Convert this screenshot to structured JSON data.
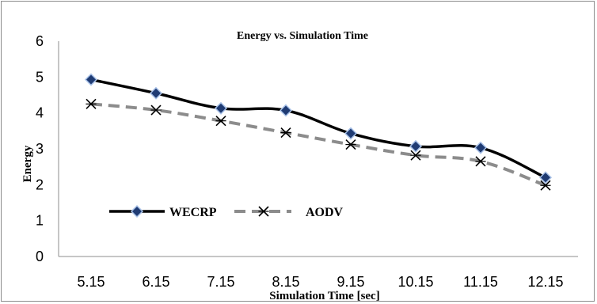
{
  "chart_data": {
    "type": "line",
    "title": "Energy vs. Simulation Time",
    "xlabel": "Simulation Time [sec]",
    "ylabel": "Energy",
    "categories": [
      "5.15",
      "6.15",
      "7.15",
      "8.15",
      "9.15",
      "10.15",
      "11.15",
      "12.15"
    ],
    "ylim": [
      0,
      6
    ],
    "yticks": [
      0,
      1,
      2,
      3,
      4,
      5,
      6
    ],
    "grid": false,
    "legend_position": "lower-left",
    "series": [
      {
        "name": "WECRP",
        "values": [
          4.93,
          4.55,
          4.13,
          4.07,
          3.43,
          3.07,
          3.03,
          2.2
        ],
        "color": "#000000",
        "marker_color": "#1f3b73",
        "style": "solid"
      },
      {
        "name": "AODV",
        "values": [
          4.25,
          4.08,
          3.78,
          3.45,
          3.12,
          2.82,
          2.65,
          1.98
        ],
        "color": "#8c8c8c",
        "marker_color": "#000000",
        "style": "dashed"
      }
    ]
  }
}
